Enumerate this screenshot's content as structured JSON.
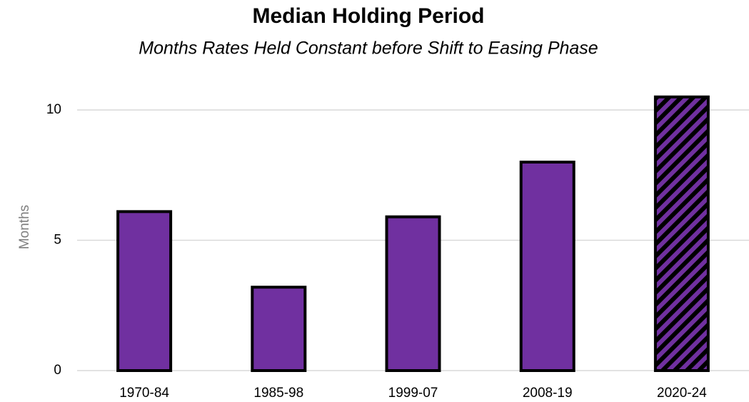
{
  "chart_data": {
    "type": "bar",
    "title": "Median Holding Period",
    "subtitle": "Months Rates Held Constant before Shift to Easing Phase",
    "y_label": "Months",
    "categories": [
      "1970-84",
      "1985-98",
      "1999-07",
      "2008-19",
      "2020-24"
    ],
    "values": [
      6.1,
      3.2,
      5.9,
      8.0,
      10.5
    ],
    "hatched": [
      false,
      false,
      false,
      false,
      true
    ],
    "color": "#7030a0",
    "ylim": [
      0,
      11
    ],
    "yticks": [
      0,
      5,
      10
    ],
    "grid": true
  }
}
